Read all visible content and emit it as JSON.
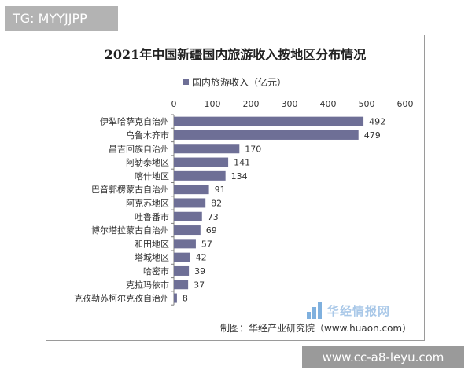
{
  "overlay_top": "TG: MYYJJPP",
  "overlay_bottom": "www.cc-a8-leyu.com",
  "watermark_text": "华经情报网",
  "source_text": "制图：华经产业研究院（www.huaon.com）",
  "colors": {
    "bar": "#6e6f96",
    "axis": "#7f7f7f",
    "text": "#333333"
  },
  "chart_data": {
    "type": "bar",
    "orientation": "horizontal",
    "title": "2021年中国新疆国内旅游收入按地区分布情况",
    "legend": "国内旅游收入（亿元）",
    "legend_position": "top",
    "xlim": [
      0,
      600
    ],
    "ticks": [
      0,
      100,
      200,
      300,
      400,
      500,
      600
    ],
    "grid": false,
    "data_labels": true,
    "categories": [
      "伊犁哈萨克自治州",
      "乌鲁木齐市",
      "昌吉回族自治州",
      "阿勒泰地区",
      "喀什地区",
      "巴音郭楞蒙古自治州",
      "阿克苏地区",
      "吐鲁番市",
      "博尔塔拉蒙古自治州",
      "和田地区",
      "塔城地区",
      "哈密市",
      "克拉玛依市",
      "克孜勒苏柯尔克孜自治州"
    ],
    "values": [
      492,
      479,
      170,
      141,
      134,
      91,
      82,
      73,
      69,
      57,
      42,
      39,
      37,
      8
    ]
  }
}
